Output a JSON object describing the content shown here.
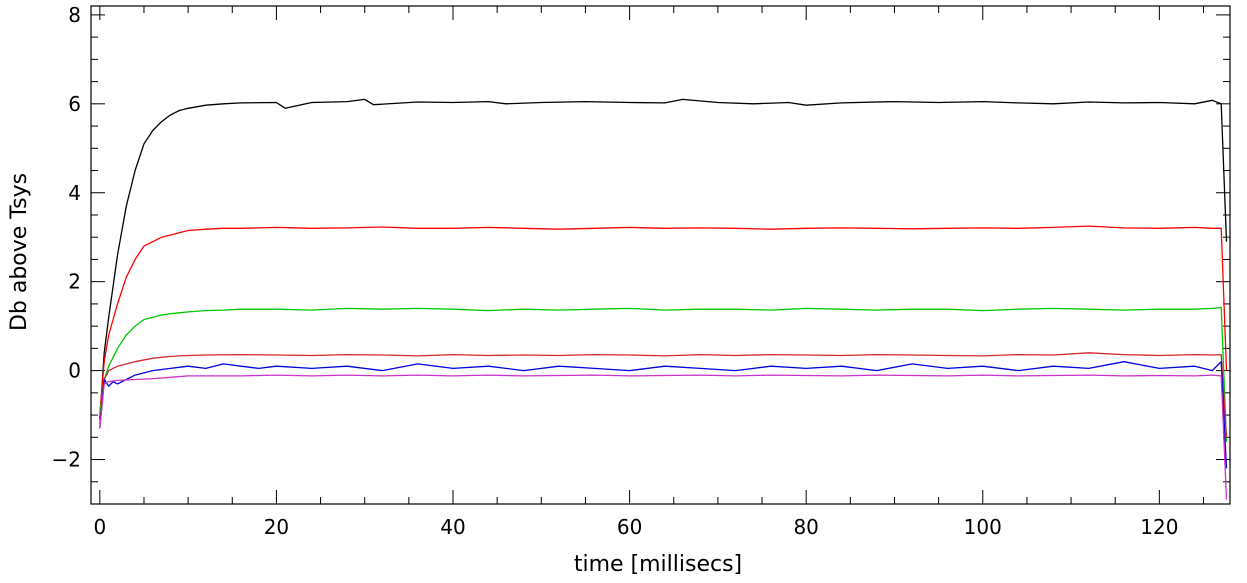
{
  "chart_data": {
    "type": "line",
    "title": "",
    "xlabel": "time [millisecs]",
    "ylabel": "Db above Tsys",
    "xlim": [
      -1,
      128
    ],
    "ylim": [
      -3,
      8.2
    ],
    "x_ticks": [
      0,
      20,
      40,
      60,
      80,
      100,
      120
    ],
    "x_tick_labels": [
      "0",
      "20",
      "40",
      "60",
      "80",
      "100",
      "120"
    ],
    "y_ticks": [
      -2,
      0,
      2,
      4,
      6,
      8
    ],
    "y_tick_labels": [
      "−2",
      "0",
      "2",
      "4",
      "6",
      "8"
    ],
    "grid": false,
    "legend": "none",
    "series": [
      {
        "color": "#000000",
        "x": [
          0,
          0.5,
          1,
          2,
          3,
          4,
          5,
          6,
          7,
          8,
          9,
          10,
          12,
          14,
          16,
          20,
          21,
          24,
          28,
          30,
          31,
          36,
          40,
          44,
          46,
          50,
          55,
          60,
          64,
          66,
          70,
          74,
          78,
          80,
          84,
          90,
          95,
          100,
          104,
          108,
          112,
          116,
          120,
          124,
          126,
          127,
          127.6
        ],
        "y": [
          -1.1,
          0.4,
          1.2,
          2.6,
          3.7,
          4.5,
          5.1,
          5.4,
          5.6,
          5.75,
          5.85,
          5.9,
          5.97,
          6.0,
          6.02,
          6.03,
          5.9,
          6.03,
          6.05,
          6.1,
          5.98,
          6.04,
          6.03,
          6.05,
          6.0,
          6.03,
          6.05,
          6.03,
          6.02,
          6.1,
          6.03,
          6.0,
          6.03,
          5.97,
          6.02,
          6.05,
          6.03,
          6.05,
          6.02,
          6.0,
          6.04,
          6.02,
          6.03,
          6.0,
          6.08,
          6.0,
          2.9
        ]
      },
      {
        "color": "#ff0000",
        "x": [
          0,
          0.5,
          1,
          2,
          3,
          4,
          5,
          6,
          7,
          8,
          9,
          10,
          12,
          14,
          16,
          20,
          24,
          28,
          32,
          36,
          40,
          44,
          48,
          52,
          56,
          60,
          64,
          68,
          72,
          76,
          80,
          84,
          88,
          92,
          96,
          100,
          104,
          108,
          112,
          116,
          120,
          124,
          126,
          127,
          127.6
        ],
        "y": [
          -1.0,
          0.2,
          0.8,
          1.5,
          2.1,
          2.5,
          2.8,
          2.9,
          3.0,
          3.05,
          3.1,
          3.15,
          3.18,
          3.2,
          3.2,
          3.22,
          3.2,
          3.21,
          3.23,
          3.2,
          3.2,
          3.22,
          3.2,
          3.18,
          3.2,
          3.22,
          3.2,
          3.21,
          3.2,
          3.18,
          3.2,
          3.21,
          3.2,
          3.19,
          3.2,
          3.21,
          3.2,
          3.22,
          3.25,
          3.21,
          3.2,
          3.22,
          3.2,
          3.2,
          0.0
        ]
      },
      {
        "color": "#00c800",
        "x": [
          0,
          0.5,
          1,
          2,
          3,
          4,
          5,
          6,
          7,
          8,
          9,
          10,
          12,
          14,
          16,
          20,
          24,
          28,
          32,
          36,
          40,
          44,
          48,
          52,
          56,
          60,
          64,
          68,
          72,
          76,
          80,
          84,
          88,
          92,
          96,
          100,
          104,
          108,
          112,
          116,
          120,
          124,
          126,
          127,
          127.6
        ],
        "y": [
          -1.0,
          -0.2,
          0.1,
          0.5,
          0.8,
          1.0,
          1.15,
          1.2,
          1.25,
          1.28,
          1.3,
          1.32,
          1.35,
          1.36,
          1.38,
          1.38,
          1.36,
          1.4,
          1.38,
          1.4,
          1.38,
          1.35,
          1.38,
          1.36,
          1.38,
          1.4,
          1.36,
          1.38,
          1.38,
          1.36,
          1.4,
          1.38,
          1.36,
          1.38,
          1.38,
          1.35,
          1.38,
          1.4,
          1.38,
          1.36,
          1.38,
          1.38,
          1.4,
          1.42,
          -1.6
        ]
      },
      {
        "color": "#d22828",
        "x": [
          0,
          0.5,
          1,
          2,
          4,
          6,
          8,
          10,
          12,
          16,
          20,
          24,
          28,
          32,
          36,
          40,
          44,
          48,
          52,
          56,
          60,
          64,
          68,
          72,
          76,
          80,
          84,
          88,
          92,
          96,
          100,
          104,
          108,
          112,
          116,
          120,
          124,
          126,
          127,
          127.6
        ],
        "y": [
          -1.2,
          -0.2,
          0.0,
          0.1,
          0.2,
          0.28,
          0.32,
          0.34,
          0.35,
          0.36,
          0.35,
          0.34,
          0.36,
          0.35,
          0.33,
          0.36,
          0.34,
          0.35,
          0.34,
          0.36,
          0.35,
          0.33,
          0.36,
          0.34,
          0.36,
          0.35,
          0.34,
          0.36,
          0.35,
          0.34,
          0.33,
          0.36,
          0.35,
          0.4,
          0.36,
          0.34,
          0.36,
          0.35,
          0.36,
          -1.5
        ]
      },
      {
        "color": "#0000e0",
        "x": [
          0,
          0.5,
          1,
          1.5,
          2,
          4,
          6,
          8,
          10,
          12,
          14,
          16,
          18,
          20,
          24,
          28,
          32,
          36,
          40,
          44,
          48,
          52,
          56,
          60,
          64,
          68,
          72,
          76,
          80,
          84,
          88,
          92,
          96,
          100,
          104,
          108,
          112,
          116,
          120,
          124,
          126,
          127,
          127.6
        ],
        "y": [
          -1.3,
          -0.2,
          -0.35,
          -0.25,
          -0.3,
          -0.1,
          0.0,
          0.05,
          0.1,
          0.05,
          0.15,
          0.1,
          0.05,
          0.1,
          0.05,
          0.1,
          0.0,
          0.15,
          0.05,
          0.1,
          0.0,
          0.1,
          0.05,
          0.0,
          0.1,
          0.05,
          0.0,
          0.1,
          0.05,
          0.1,
          0.0,
          0.15,
          0.05,
          0.1,
          0.0,
          0.1,
          0.05,
          0.2,
          0.05,
          0.1,
          0.0,
          0.2,
          -2.2
        ]
      },
      {
        "color": "#c832c8",
        "x": [
          0,
          0.5,
          1,
          2,
          4,
          6,
          8,
          10,
          12,
          16,
          20,
          24,
          28,
          32,
          36,
          40,
          44,
          48,
          52,
          56,
          60,
          64,
          68,
          72,
          76,
          80,
          84,
          88,
          92,
          96,
          100,
          104,
          108,
          112,
          116,
          120,
          124,
          126,
          127,
          127.6
        ],
        "y": [
          -1.3,
          -0.3,
          -0.25,
          -0.22,
          -0.2,
          -0.18,
          -0.15,
          -0.12,
          -0.12,
          -0.12,
          -0.1,
          -0.12,
          -0.1,
          -0.12,
          -0.1,
          -0.12,
          -0.1,
          -0.12,
          -0.11,
          -0.1,
          -0.12,
          -0.11,
          -0.1,
          -0.12,
          -0.1,
          -0.11,
          -0.12,
          -0.1,
          -0.11,
          -0.12,
          -0.1,
          -0.12,
          -0.11,
          -0.1,
          -0.12,
          -0.11,
          -0.12,
          -0.1,
          -0.12,
          -2.9
        ]
      }
    ]
  }
}
